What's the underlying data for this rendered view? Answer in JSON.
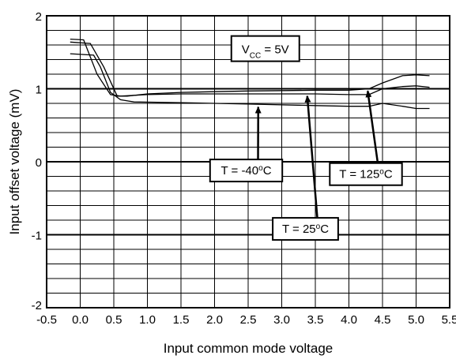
{
  "chart_data": {
    "type": "line",
    "title": "",
    "xlabel": "Input common mode voltage",
    "ylabel": "Input offset voltage (mV)",
    "xlim": [
      -0.5,
      5.5
    ],
    "ylim": [
      -2,
      2
    ],
    "x_ticks": [
      "-0.5",
      "0.0",
      "0.5",
      "1.0",
      "1.5",
      "2.0",
      "2.5",
      "3.0",
      "3.5",
      "4.0",
      "4.5",
      "5.0",
      "5.5"
    ],
    "y_ticks": [
      "-2",
      "-1",
      "0",
      "1",
      "2"
    ],
    "grid": true,
    "series": [
      {
        "name": "T = -40°C",
        "points": [
          [
            -0.15,
            1.48
          ],
          [
            0.2,
            1.46
          ],
          [
            0.3,
            1.3
          ],
          [
            0.45,
            0.95
          ],
          [
            0.6,
            0.85
          ],
          [
            0.8,
            0.82
          ],
          [
            1.5,
            0.81
          ],
          [
            2.5,
            0.79
          ],
          [
            3.5,
            0.77
          ],
          [
            4.0,
            0.76
          ],
          [
            4.3,
            0.76
          ],
          [
            4.5,
            0.8
          ],
          [
            4.8,
            0.76
          ],
          [
            5.0,
            0.73
          ],
          [
            5.2,
            0.73
          ]
        ]
      },
      {
        "name": "T = 25°C",
        "points": [
          [
            -0.15,
            1.68
          ],
          [
            0.05,
            1.67
          ],
          [
            0.25,
            1.2
          ],
          [
            0.45,
            0.92
          ],
          [
            0.6,
            0.9
          ],
          [
            1.0,
            0.92
          ],
          [
            1.5,
            0.93
          ],
          [
            2.5,
            0.93
          ],
          [
            3.5,
            0.93
          ],
          [
            4.0,
            0.92
          ],
          [
            4.3,
            0.92
          ],
          [
            4.5,
            1.0
          ],
          [
            4.8,
            1.03
          ],
          [
            5.0,
            1.04
          ],
          [
            5.2,
            1.02
          ]
        ]
      },
      {
        "name": "T = 125°C",
        "points": [
          [
            -0.15,
            1.64
          ],
          [
            0.15,
            1.62
          ],
          [
            0.35,
            1.3
          ],
          [
            0.55,
            0.9
          ],
          [
            0.7,
            0.9
          ],
          [
            1.0,
            0.93
          ],
          [
            1.5,
            0.95
          ],
          [
            2.5,
            0.97
          ],
          [
            3.5,
            0.98
          ],
          [
            4.0,
            0.98
          ],
          [
            4.3,
            1.0
          ],
          [
            4.5,
            1.08
          ],
          [
            4.8,
            1.18
          ],
          [
            5.0,
            1.19
          ],
          [
            5.2,
            1.18
          ]
        ]
      }
    ],
    "annotations": [
      {
        "text": "T = -40°C",
        "box_at": [
          2.0,
          -0.12
        ],
        "arrow_to": [
          2.65,
          0.75
        ]
      },
      {
        "text": "T = 25°C",
        "box_at": [
          3.0,
          -0.92
        ],
        "arrow_to": [
          3.38,
          0.9
        ]
      },
      {
        "text": "T = 125°C",
        "box_at": [
          3.9,
          -0.17
        ],
        "arrow_to": [
          4.28,
          0.97
        ]
      }
    ],
    "condition_label": {
      "main": "V",
      "sub": "CC",
      "rest": " = 5V"
    }
  }
}
